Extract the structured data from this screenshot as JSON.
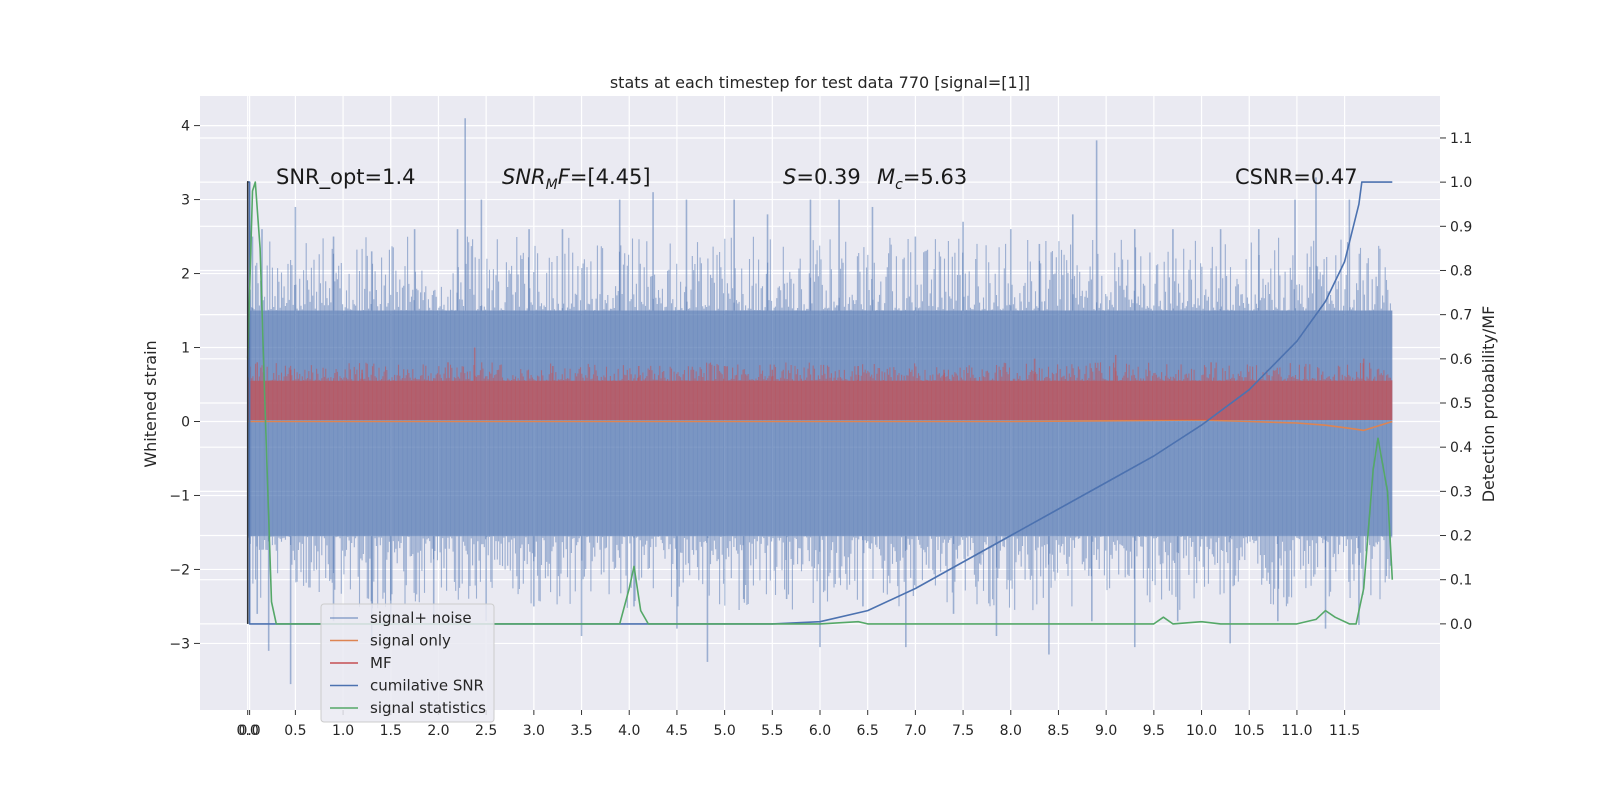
{
  "chart_data": {
    "type": "line",
    "title": "stats at each timestep for test data 770 [signal=[1]]",
    "xlabel": "",
    "ylabel_left": "Whitened strain",
    "ylabel_right": "Detection probability/MF",
    "xlim": [
      -0.5,
      12.5
    ],
    "ylim_left": [
      -3.9,
      4.4
    ],
    "ylim_right": [
      -0.195,
      1.195
    ],
    "grid": true,
    "x_ticks": [
      "0.0",
      "0.0",
      "0.5",
      "1.0",
      "1.5",
      "2.0",
      "2.5",
      "3.0",
      "3.5",
      "4.0",
      "4.5",
      "5.0",
      "5.5",
      "6.0",
      "6.5",
      "7.0",
      "7.5",
      "8.0",
      "8.5",
      "9.0",
      "9.5",
      "10.0",
      "10.5",
      "11.0",
      "11.5"
    ],
    "x_tick_values": [
      0.0,
      0.02,
      0.5,
      1.0,
      1.5,
      2.0,
      2.5,
      3.0,
      3.5,
      4.0,
      4.5,
      5.0,
      5.5,
      6.0,
      6.5,
      7.0,
      7.5,
      8.0,
      8.5,
      9.0,
      9.5,
      10.0,
      10.5,
      11.0,
      11.5
    ],
    "y_left_ticks": [
      4,
      3,
      2,
      1,
      0,
      -1,
      -2,
      -3
    ],
    "y_left_tick_labels": [
      "4",
      "3",
      "2",
      "1",
      "0",
      "−1",
      "−2",
      "−3"
    ],
    "y_right_ticks": [
      1.1,
      1.0,
      0.9,
      0.8,
      0.7,
      0.6,
      0.5,
      0.4,
      0.3,
      0.2,
      0.1,
      0.0
    ],
    "y_right_tick_labels": [
      "1.1",
      "1.0",
      "0.9",
      "0.8",
      "0.7",
      "0.6",
      "0.5",
      "0.4",
      "0.3",
      "0.2",
      "0.1",
      "0.0"
    ],
    "annotations": {
      "snr_opt": "SNR_opt=1.4",
      "snr_mf": [
        "SNR",
        "M",
        "F=[4.45]"
      ],
      "s_value": [
        "S",
        "=0.39"
      ],
      "mc_value": [
        "M",
        "c",
        "=5.63"
      ],
      "csnr": "CSNR=0.47"
    },
    "legend_position": "lower left",
    "series": [
      {
        "name": "signal+ noise",
        "axis": "left",
        "color": "#4c72b0",
        "style": "noise band",
        "x_range": [
          0,
          12
        ],
        "band": [
          -1.55,
          1.5
        ],
        "spikes_up": [
          [
            0.05,
            2.5
          ],
          [
            0.15,
            2.6
          ],
          [
            0.5,
            2.9
          ],
          [
            0.9,
            2.5
          ],
          [
            1.3,
            2.3
          ],
          [
            1.75,
            2.6
          ],
          [
            2.2,
            2.6
          ],
          [
            2.28,
            4.1
          ],
          [
            2.45,
            3.0
          ],
          [
            2.95,
            2.6
          ],
          [
            3.3,
            2.6
          ],
          [
            3.9,
            3.0
          ],
          [
            4.25,
            3.1
          ],
          [
            4.6,
            3.0
          ],
          [
            5.1,
            3.0
          ],
          [
            5.45,
            2.8
          ],
          [
            5.9,
            3.0
          ],
          [
            6.2,
            3.0
          ],
          [
            6.55,
            2.9
          ],
          [
            7.0,
            2.5
          ],
          [
            7.5,
            2.7
          ],
          [
            8.0,
            2.6
          ],
          [
            8.3,
            2.4
          ],
          [
            8.65,
            2.8
          ],
          [
            8.9,
            3.8
          ],
          [
            9.3,
            2.6
          ],
          [
            9.7,
            2.6
          ],
          [
            10.2,
            2.6
          ],
          [
            10.6,
            2.6
          ],
          [
            10.98,
            3.0
          ],
          [
            11.2,
            3.3
          ],
          [
            11.55,
            3.0
          ]
        ],
        "spikes_down": [
          [
            0.1,
            -2.6
          ],
          [
            0.22,
            -3.1
          ],
          [
            0.45,
            -3.55
          ],
          [
            0.9,
            -2.7
          ],
          [
            1.3,
            -3.0
          ],
          [
            1.5,
            -2.7
          ],
          [
            1.95,
            -2.7
          ],
          [
            2.5,
            -2.7
          ],
          [
            3.0,
            -2.5
          ],
          [
            3.5,
            -2.9
          ],
          [
            4.05,
            -2.5
          ],
          [
            4.5,
            -2.8
          ],
          [
            4.82,
            -3.25
          ],
          [
            5.2,
            -2.4
          ],
          [
            5.65,
            -2.4
          ],
          [
            6.0,
            -3.05
          ],
          [
            6.45,
            -2.5
          ],
          [
            6.9,
            -3.05
          ],
          [
            7.4,
            -2.6
          ],
          [
            7.85,
            -2.9
          ],
          [
            8.4,
            -3.15
          ],
          [
            8.85,
            -2.7
          ],
          [
            9.3,
            -3.05
          ],
          [
            9.75,
            -2.7
          ],
          [
            10.3,
            -3.0
          ],
          [
            10.8,
            -2.7
          ],
          [
            11.3,
            -2.8
          ],
          [
            11.65,
            -2.75
          ]
        ]
      },
      {
        "name": "signal only",
        "axis": "left",
        "color": "#dd8452",
        "x": [
          0,
          2,
          4,
          6,
          8,
          9,
          10,
          10.5,
          11,
          11.3,
          11.6,
          11.7,
          12
        ],
        "y": [
          0.0,
          0.0,
          0.0,
          0.0,
          0.0,
          0.01,
          0.02,
          0.0,
          -0.02,
          -0.05,
          -0.1,
          -0.12,
          0.0
        ]
      },
      {
        "name": "MF",
        "axis": "left",
        "color": "#c44e52",
        "style": "noise band",
        "x_range": [
          0,
          12
        ],
        "band": [
          0.02,
          0.55
        ],
        "spikes_up": [
          [
            0.1,
            0.8
          ],
          [
            0.45,
            0.7
          ],
          [
            1.2,
            0.7
          ],
          [
            2.1,
            0.8
          ],
          [
            2.38,
            1.0
          ],
          [
            3.2,
            0.75
          ],
          [
            4.1,
            0.75
          ],
          [
            5.0,
            0.75
          ],
          [
            5.5,
            0.7
          ],
          [
            6.4,
            0.75
          ],
          [
            7.3,
            0.7
          ],
          [
            8.25,
            0.85
          ],
          [
            9.1,
            0.9
          ],
          [
            10.1,
            0.8
          ],
          [
            11.7,
            0.85
          ]
        ]
      },
      {
        "name": "cumilative SNR",
        "axis": "right",
        "color": "#4c72b0",
        "x": [
          0,
          0.0,
          0.02,
          0.02,
          0.13,
          0.13,
          0.5,
          4,
          5,
          5.5,
          6,
          6.5,
          7,
          7.5,
          8,
          8.5,
          9,
          9.5,
          10,
          10.5,
          11,
          11.3,
          11.5,
          11.65,
          11.68,
          12
        ],
        "y": [
          0.0,
          1.0,
          1.0,
          0.0,
          0.0,
          0.0,
          0.0,
          0.0,
          0.0,
          0.0,
          0.005,
          0.03,
          0.08,
          0.14,
          0.2,
          0.26,
          0.32,
          0.38,
          0.45,
          0.53,
          0.64,
          0.73,
          0.82,
          0.95,
          1.0,
          1.0
        ]
      },
      {
        "name": "signal statistics",
        "axis": "right",
        "color": "#55a868",
        "x": [
          0,
          0.05,
          0.08,
          0.13,
          0.18,
          0.25,
          0.3,
          0.5,
          1,
          2,
          3,
          3.5,
          3.9,
          4.0,
          4.05,
          4.12,
          4.2,
          4.5,
          6,
          6.4,
          6.5,
          7,
          9,
          9.5,
          9.6,
          9.7,
          10,
          10.2,
          10.5,
          11,
          11.2,
          11.3,
          11.4,
          11.55,
          11.62,
          11.7,
          11.8,
          11.85,
          11.95,
          12
        ],
        "y": [
          0.6,
          0.98,
          1.0,
          0.85,
          0.5,
          0.05,
          0.0,
          0.0,
          0.0,
          0.0,
          0.0,
          0.0,
          0.0,
          0.08,
          0.13,
          0.03,
          0.0,
          0.0,
          0.0,
          0.005,
          0.0,
          0.0,
          0.0,
          0.0,
          0.015,
          0.0,
          0.005,
          0.0,
          0.0,
          0.0,
          0.01,
          0.03,
          0.015,
          0.0,
          0.0,
          0.08,
          0.35,
          0.42,
          0.3,
          0.1
        ]
      }
    ]
  }
}
